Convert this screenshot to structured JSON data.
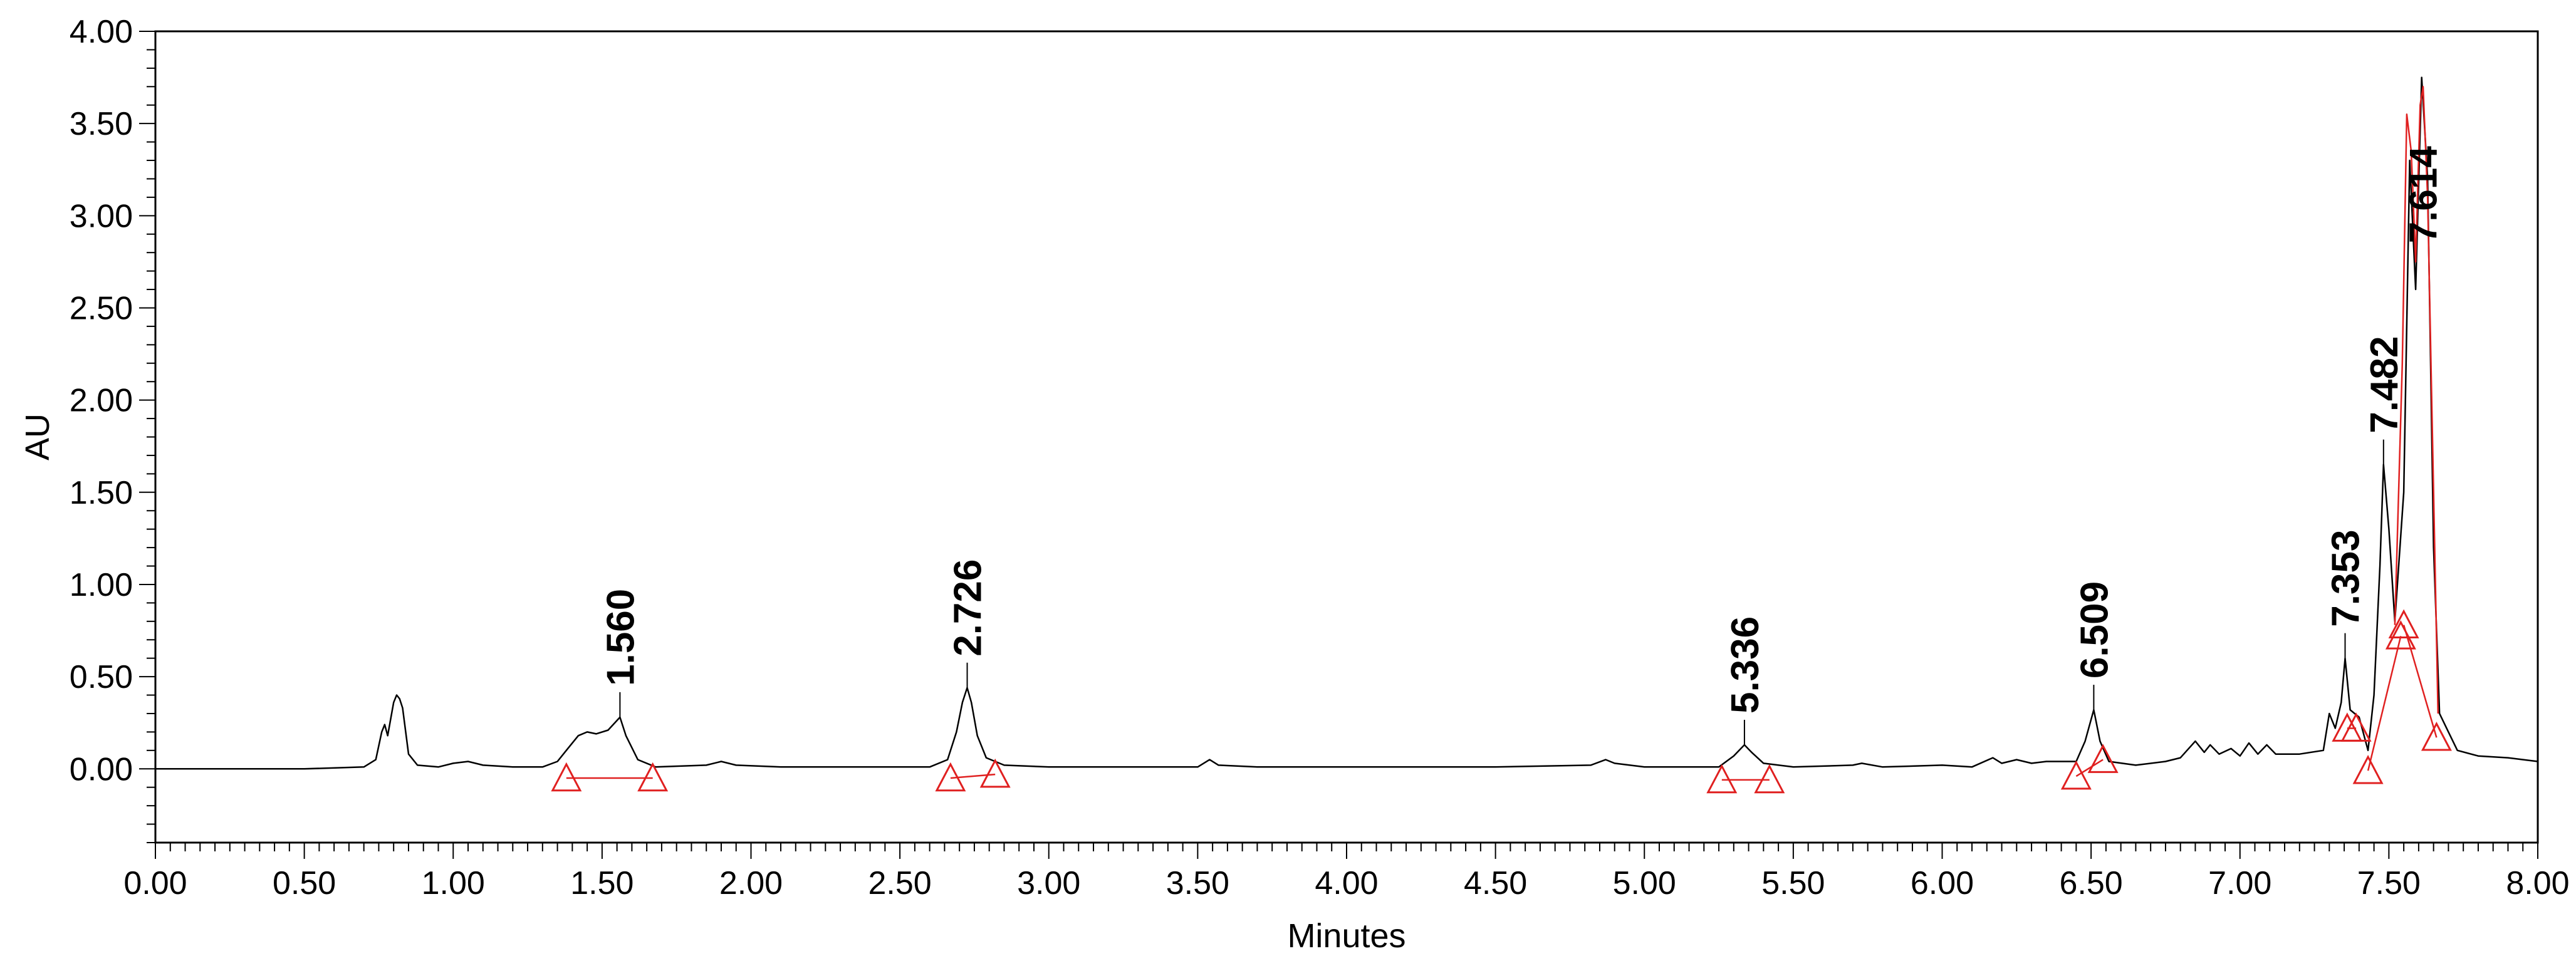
{
  "chart_data": {
    "type": "line",
    "xlabel": "Minutes",
    "ylabel": "AU",
    "xlim": [
      0,
      8
    ],
    "ylim": [
      -0.4,
      4.0
    ],
    "x_ticks": [
      "0.00",
      "0.50",
      "1.00",
      "1.50",
      "2.00",
      "2.50",
      "3.00",
      "3.50",
      "4.00",
      "4.50",
      "5.00",
      "5.50",
      "6.00",
      "6.50",
      "7.00",
      "7.50",
      "8.00"
    ],
    "y_ticks": [
      "0.00",
      "0.50",
      "1.00",
      "1.50",
      "2.00",
      "2.50",
      "3.00",
      "3.50",
      "4.00"
    ],
    "grid": false,
    "series": [
      {
        "color": "#000000",
        "points": [
          [
            0,
            0
          ],
          [
            0.5,
            0
          ],
          [
            0.7,
            0.01
          ],
          [
            0.74,
            0.05
          ],
          [
            0.76,
            0.2
          ],
          [
            0.77,
            0.24
          ],
          [
            0.78,
            0.18
          ],
          [
            0.8,
            0.36
          ],
          [
            0.81,
            0.4
          ],
          [
            0.82,
            0.38
          ],
          [
            0.83,
            0.33
          ],
          [
            0.85,
            0.08
          ],
          [
            0.88,
            0.02
          ],
          [
            0.95,
            0.01
          ],
          [
            1.0,
            0.03
          ],
          [
            1.05,
            0.04
          ],
          [
            1.1,
            0.02
          ],
          [
            1.2,
            0.01
          ],
          [
            1.3,
            0.01
          ],
          [
            1.35,
            0.04
          ],
          [
            1.38,
            0.1
          ],
          [
            1.42,
            0.18
          ],
          [
            1.45,
            0.2
          ],
          [
            1.48,
            0.19
          ],
          [
            1.52,
            0.21
          ],
          [
            1.56,
            0.28
          ],
          [
            1.58,
            0.18
          ],
          [
            1.62,
            0.05
          ],
          [
            1.68,
            0.01
          ],
          [
            1.85,
            0.02
          ],
          [
            1.9,
            0.04
          ],
          [
            1.95,
            0.02
          ],
          [
            2.1,
            0.01
          ],
          [
            2.6,
            0.01
          ],
          [
            2.66,
            0.05
          ],
          [
            2.69,
            0.2
          ],
          [
            2.71,
            0.36
          ],
          [
            2.726,
            0.44
          ],
          [
            2.74,
            0.36
          ],
          [
            2.76,
            0.18
          ],
          [
            2.79,
            0.06
          ],
          [
            2.85,
            0.02
          ],
          [
            3.0,
            0.01
          ],
          [
            3.5,
            0.01
          ],
          [
            3.54,
            0.05
          ],
          [
            3.57,
            0.02
          ],
          [
            3.7,
            0.01
          ],
          [
            4.5,
            0.01
          ],
          [
            4.82,
            0.02
          ],
          [
            4.87,
            0.05
          ],
          [
            4.9,
            0.03
          ],
          [
            5.0,
            0.01
          ],
          [
            5.25,
            0.01
          ],
          [
            5.3,
            0.07
          ],
          [
            5.336,
            0.13
          ],
          [
            5.36,
            0.09
          ],
          [
            5.4,
            0.03
          ],
          [
            5.5,
            0.01
          ],
          [
            5.7,
            0.02
          ],
          [
            5.73,
            0.03
          ],
          [
            5.8,
            0.01
          ],
          [
            6.0,
            0.02
          ],
          [
            6.1,
            0.01
          ],
          [
            6.17,
            0.06
          ],
          [
            6.2,
            0.03
          ],
          [
            6.25,
            0.05
          ],
          [
            6.3,
            0.03
          ],
          [
            6.35,
            0.04
          ],
          [
            6.45,
            0.04
          ],
          [
            6.48,
            0.15
          ],
          [
            6.509,
            0.32
          ],
          [
            6.53,
            0.15
          ],
          [
            6.56,
            0.04
          ],
          [
            6.65,
            0.02
          ],
          [
            6.75,
            0.04
          ],
          [
            6.8,
            0.06
          ],
          [
            6.85,
            0.15
          ],
          [
            6.88,
            0.09
          ],
          [
            6.9,
            0.13
          ],
          [
            6.93,
            0.08
          ],
          [
            6.97,
            0.11
          ],
          [
            7.0,
            0.07
          ],
          [
            7.03,
            0.14
          ],
          [
            7.06,
            0.08
          ],
          [
            7.09,
            0.13
          ],
          [
            7.12,
            0.08
          ],
          [
            7.2,
            0.08
          ],
          [
            7.28,
            0.1
          ],
          [
            7.3,
            0.3
          ],
          [
            7.32,
            0.22
          ],
          [
            7.34,
            0.36
          ],
          [
            7.353,
            0.6
          ],
          [
            7.37,
            0.32
          ],
          [
            7.4,
            0.28
          ],
          [
            7.43,
            0.1
          ],
          [
            7.45,
            0.4
          ],
          [
            7.47,
            1.1
          ],
          [
            7.482,
            1.65
          ],
          [
            7.5,
            1.3
          ],
          [
            7.52,
            0.8
          ],
          [
            7.55,
            1.5
          ],
          [
            7.57,
            3.3
          ],
          [
            7.59,
            2.6
          ],
          [
            7.61,
            3.75
          ],
          [
            7.63,
            3.2
          ],
          [
            7.65,
            1.2
          ],
          [
            7.67,
            0.3
          ],
          [
            7.7,
            0.2
          ],
          [
            7.73,
            0.1
          ],
          [
            7.8,
            0.07
          ],
          [
            7.9,
            0.06
          ],
          [
            8.0,
            0.04
          ]
        ]
      },
      {
        "color": "#e02020",
        "points": [
          [
            7.52,
            0.78
          ],
          [
            7.545,
            2.2
          ],
          [
            7.56,
            3.55
          ],
          [
            7.575,
            3.35
          ],
          [
            7.59,
            2.75
          ],
          [
            7.605,
            3.6
          ],
          [
            7.615,
            3.7
          ],
          [
            7.63,
            3.1
          ],
          [
            7.65,
            1.5
          ],
          [
            7.665,
            0.3
          ]
        ]
      }
    ],
    "peaks": [
      {
        "label": "1.560",
        "x": 1.56,
        "y": 0.28
      },
      {
        "label": "2.726",
        "x": 2.726,
        "y": 0.44
      },
      {
        "label": "5.336",
        "x": 5.336,
        "y": 0.13
      },
      {
        "label": "6.509",
        "x": 6.509,
        "y": 0.32
      },
      {
        "label": "7.353",
        "x": 7.353,
        "y": 0.6
      },
      {
        "label": "7.482",
        "x": 7.482,
        "y": 1.65
      },
      {
        "label": "7.614",
        "x": 7.614,
        "y": 3.7
      }
    ],
    "baselines": [
      [
        [
          1.38,
          -0.05
        ],
        [
          1.67,
          -0.05
        ]
      ],
      [
        [
          2.67,
          -0.05
        ],
        [
          2.82,
          -0.03
        ]
      ],
      [
        [
          5.26,
          -0.06
        ],
        [
          5.42,
          -0.06
        ]
      ],
      [
        [
          6.45,
          -0.04
        ],
        [
          6.54,
          0.05
        ]
      ],
      [
        [
          7.36,
          0.22
        ],
        [
          7.39,
          0.22
        ]
      ],
      [
        [
          7.43,
          -0.01
        ],
        [
          7.54,
          0.72
        ]
      ],
      [
        [
          7.55,
          0.78
        ],
        [
          7.66,
          0.17
        ]
      ]
    ],
    "markers": [
      [
        1.38,
        -0.05
      ],
      [
        1.67,
        -0.05
      ],
      [
        2.67,
        -0.05
      ],
      [
        2.82,
        -0.03
      ],
      [
        5.26,
        -0.06
      ],
      [
        5.42,
        -0.06
      ],
      [
        6.45,
        -0.04
      ],
      [
        6.54,
        0.05
      ],
      [
        7.36,
        0.22
      ],
      [
        7.39,
        0.22
      ],
      [
        7.43,
        -0.01
      ],
      [
        7.54,
        0.72
      ],
      [
        7.55,
        0.78
      ],
      [
        7.66,
        0.17
      ]
    ],
    "marker_color": "#e02020",
    "baseline_color": "#e02020"
  }
}
